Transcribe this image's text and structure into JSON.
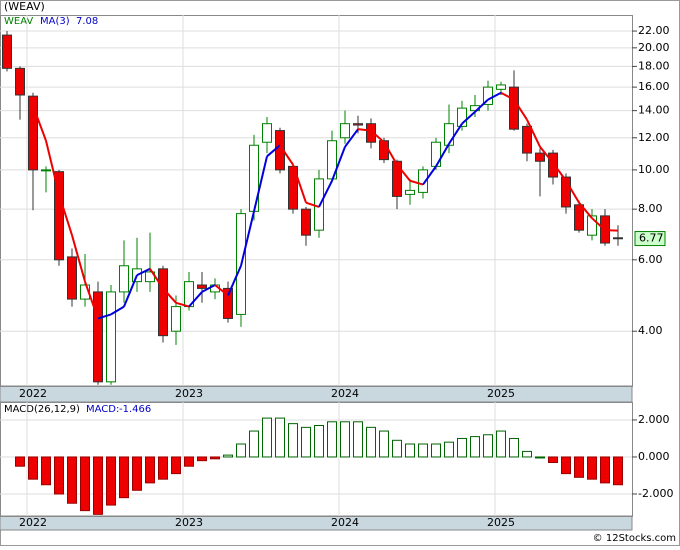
{
  "chart_data": [
    {
      "type": "candlestick",
      "title": "(WEAV)",
      "name": "WEAV",
      "log_scale": true,
      "categories": [
        null,
        null,
        "2022",
        null,
        null,
        null,
        null,
        null,
        null,
        null,
        null,
        null,
        null,
        null,
        "2023",
        null,
        null,
        null,
        null,
        null,
        null,
        null,
        null,
        null,
        null,
        null,
        "2024",
        null,
        null,
        null,
        null,
        null,
        null,
        null,
        null,
        null,
        null,
        null,
        "2025",
        null,
        null,
        null,
        null,
        null,
        null,
        null,
        null,
        null
      ],
      "open": [
        21.5,
        17.8,
        15.2,
        10,
        9.9,
        6.1,
        4.8,
        5.0,
        3.0,
        5.0,
        5.3,
        5.3,
        5.7,
        4.0,
        4.6,
        5.2,
        5.0,
        5.1,
        4.4,
        7.9,
        11.7,
        12.5,
        10.2,
        8.0,
        7.1,
        9.5,
        12.0,
        13.0,
        13.0,
        11.8,
        10.5,
        8.7,
        8.8,
        10.2,
        11.5,
        12.8,
        14.0,
        14.5,
        15.8,
        16.0,
        12.8,
        11.0,
        11.0,
        9.6,
        8.2,
        6.9,
        7.7,
        6.8
      ],
      "high": [
        22,
        18,
        15.5,
        10.2,
        10,
        6.4,
        6.2,
        5.3,
        5.2,
        6.7,
        6.8,
        7.0,
        5.8,
        4.9,
        5.6,
        5.6,
        5.4,
        5.3,
        8.0,
        12.2,
        13.5,
        12.7,
        10.3,
        8.1,
        10.0,
        12.5,
        14.0,
        13.6,
        13.4,
        12.0,
        10.6,
        9.5,
        10.2,
        12.0,
        14.5,
        14.8,
        15.3,
        16.6,
        16.5,
        17.6,
        13.0,
        11.3,
        11.2,
        9.8,
        8.4,
        8.0,
        8.0,
        7.3
      ],
      "low": [
        17.5,
        13.3,
        7.95,
        8.8,
        5.8,
        4.6,
        4.6,
        2.95,
        2.95,
        4.7,
        5.0,
        5.0,
        3.75,
        3.7,
        4.5,
        4.7,
        4.8,
        4.2,
        4.1,
        7.5,
        11,
        9.8,
        7.8,
        6.5,
        6.8,
        9.3,
        11.6,
        12.3,
        11.3,
        10.4,
        8.0,
        8.2,
        8.5,
        10.0,
        11,
        12.5,
        13.5,
        14,
        15.3,
        12.5,
        10.5,
        8.6,
        9.2,
        7.8,
        7.0,
        6.7,
        6.5,
        6.5
      ],
      "close": [
        17.8,
        15.3,
        10,
        10,
        6.0,
        4.8,
        5.2,
        3.0,
        5.0,
        5.8,
        5.7,
        5.6,
        3.9,
        4.6,
        5.3,
        5.1,
        5.2,
        4.3,
        7.8,
        11.5,
        13.0,
        10.0,
        8.0,
        6.9,
        9.5,
        11.8,
        13.0,
        12.9,
        11.7,
        10.6,
        8.6,
        8.9,
        10.0,
        11.7,
        13.0,
        14.2,
        14.4,
        16.0,
        16.2,
        12.6,
        11.0,
        10.5,
        9.6,
        8.1,
        7.1,
        7.7,
        6.6,
        6.77
      ],
      "up_color": "#008000",
      "down_color": "#ee0000",
      "ma": {
        "name": "MA(3)",
        "value": 7.08,
        "up_color": "#0000dd",
        "down_color": "#ee0000",
        "values": [
          null,
          null,
          14.4,
          11.8,
          8.7,
          6.9,
          5.3,
          4.3,
          4.4,
          4.6,
          5.5,
          5.7,
          5.1,
          4.7,
          4.6,
          5.0,
          5.2,
          4.9,
          5.8,
          7.9,
          10.8,
          11.5,
          10.3,
          8.3,
          8.1,
          9.4,
          11.4,
          12.6,
          12.5,
          11.7,
          10.3,
          9.4,
          9.2,
          10.2,
          11.6,
          13.0,
          13.9,
          14.9,
          15.5,
          14.9,
          13.3,
          11.4,
          10.4,
          9.4,
          8.3,
          7.6,
          7.1,
          7.08
        ]
      },
      "last_price": 6.77,
      "ylim": [
        2.93,
        24.1
      ],
      "yticks": [
        {
          "value": 22,
          "label": "22.00"
        },
        {
          "value": 20,
          "label": "20.00"
        },
        {
          "value": 18,
          "label": "18.00"
        },
        {
          "value": 16,
          "label": "16.00"
        },
        {
          "value": 14,
          "label": "14.00"
        },
        {
          "value": 12,
          "label": "12.00"
        },
        {
          "value": 10,
          "label": "10.00"
        },
        {
          "value": 8,
          "label": "8.00"
        },
        {
          "value": 6,
          "label": "6.00"
        },
        {
          "value": 4,
          "label": "4.00"
        }
      ],
      "grid": true
    },
    {
      "type": "bar",
      "name": "MACD(26,12,9)",
      "macd_label": "MACD:",
      "macd_value": -1.466,
      "values": [
        null,
        -0.5,
        -1.2,
        -1.5,
        -2.0,
        -2.5,
        -2.9,
        -3.1,
        -2.6,
        -2.2,
        -1.8,
        -1.4,
        -1.2,
        -0.9,
        -0.5,
        -0.2,
        -0.1,
        0.1,
        0.7,
        1.4,
        2.1,
        2.1,
        1.8,
        1.6,
        1.7,
        1.9,
        1.9,
        1.9,
        1.6,
        1.4,
        0.9,
        0.7,
        0.7,
        0.7,
        0.8,
        1.0,
        1.1,
        1.2,
        1.4,
        1.0,
        0.3,
        0.0,
        -0.3,
        -0.9,
        -1.1,
        -1.2,
        -1.4,
        -1.5
      ],
      "up_color": "#006400",
      "down_color": "#ee0000",
      "ylim": [
        -3.19,
        2.97
      ],
      "yticks": [
        {
          "value": 2,
          "label": "2.000"
        },
        {
          "value": 0,
          "label": "0.000"
        },
        {
          "value": -2,
          "label": "-2.000"
        }
      ],
      "grid": true
    }
  ],
  "footer": "© 12Stocks.com"
}
